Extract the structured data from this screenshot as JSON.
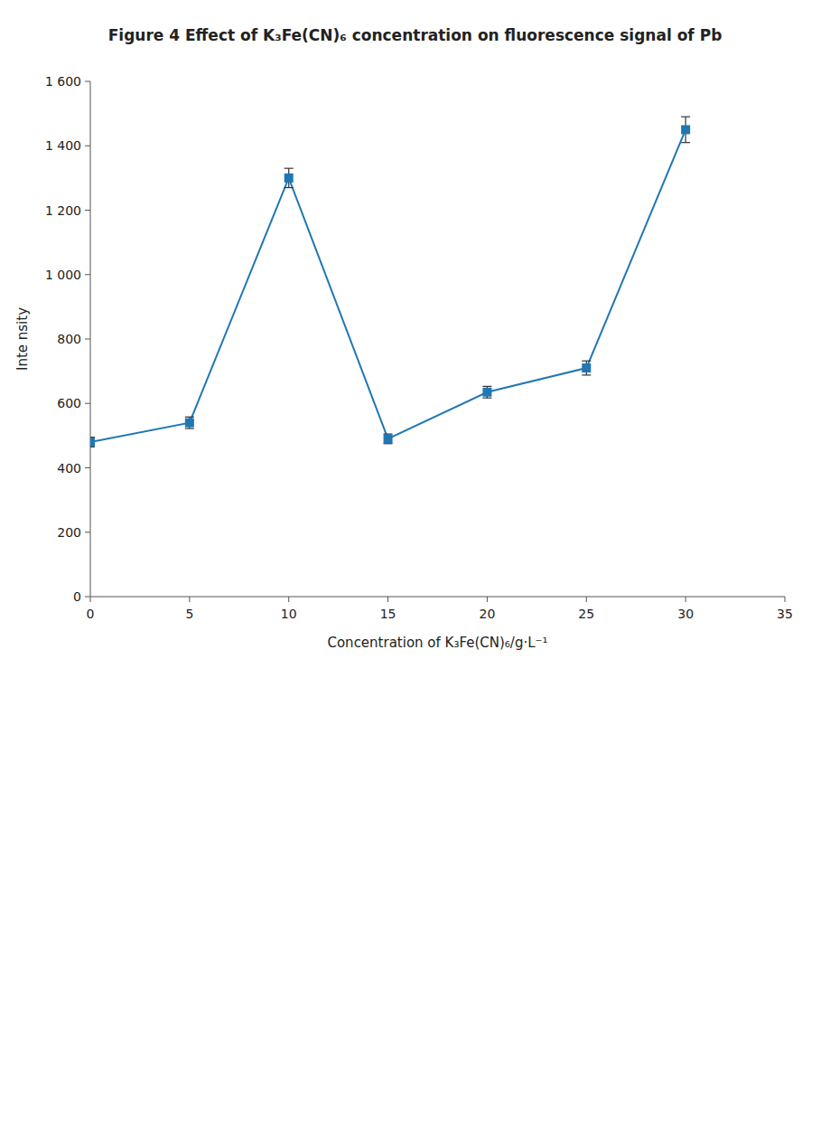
{
  "chart_data": {
    "type": "line",
    "title": "Figure 4    Effect of K₃Fe(CN)₆ concentration on fluorescence signal of Pb",
    "x_label": "Concentration of  K₃Fe(CN)₆/g·L⁻¹",
    "y_label": "Inte nsity",
    "x": [
      0,
      5,
      10,
      15,
      20,
      25,
      30
    ],
    "series": [
      {
        "values": [
          480,
          540,
          1300,
          490,
          635,
          710,
          1450
        ],
        "errors": [
          15,
          18,
          30,
          15,
          18,
          22,
          40
        ],
        "marker": "square",
        "line_style": "solid"
      }
    ],
    "xlim": [
      0,
      35
    ],
    "xticks": [
      0,
      5,
      10,
      15,
      20,
      25,
      30,
      35
    ],
    "ylim": [
      0,
      1600
    ],
    "yticks": [
      0,
      200,
      400,
      600,
      800,
      {
        "value": 1000,
        "label": "1 000"
      },
      {
        "value": 1200,
        "label": "1 200"
      },
      {
        "value": 1400,
        "label": "1 400"
      },
      {
        "value": 1600,
        "label": "1 600"
      }
    ],
    "grid": false
  }
}
